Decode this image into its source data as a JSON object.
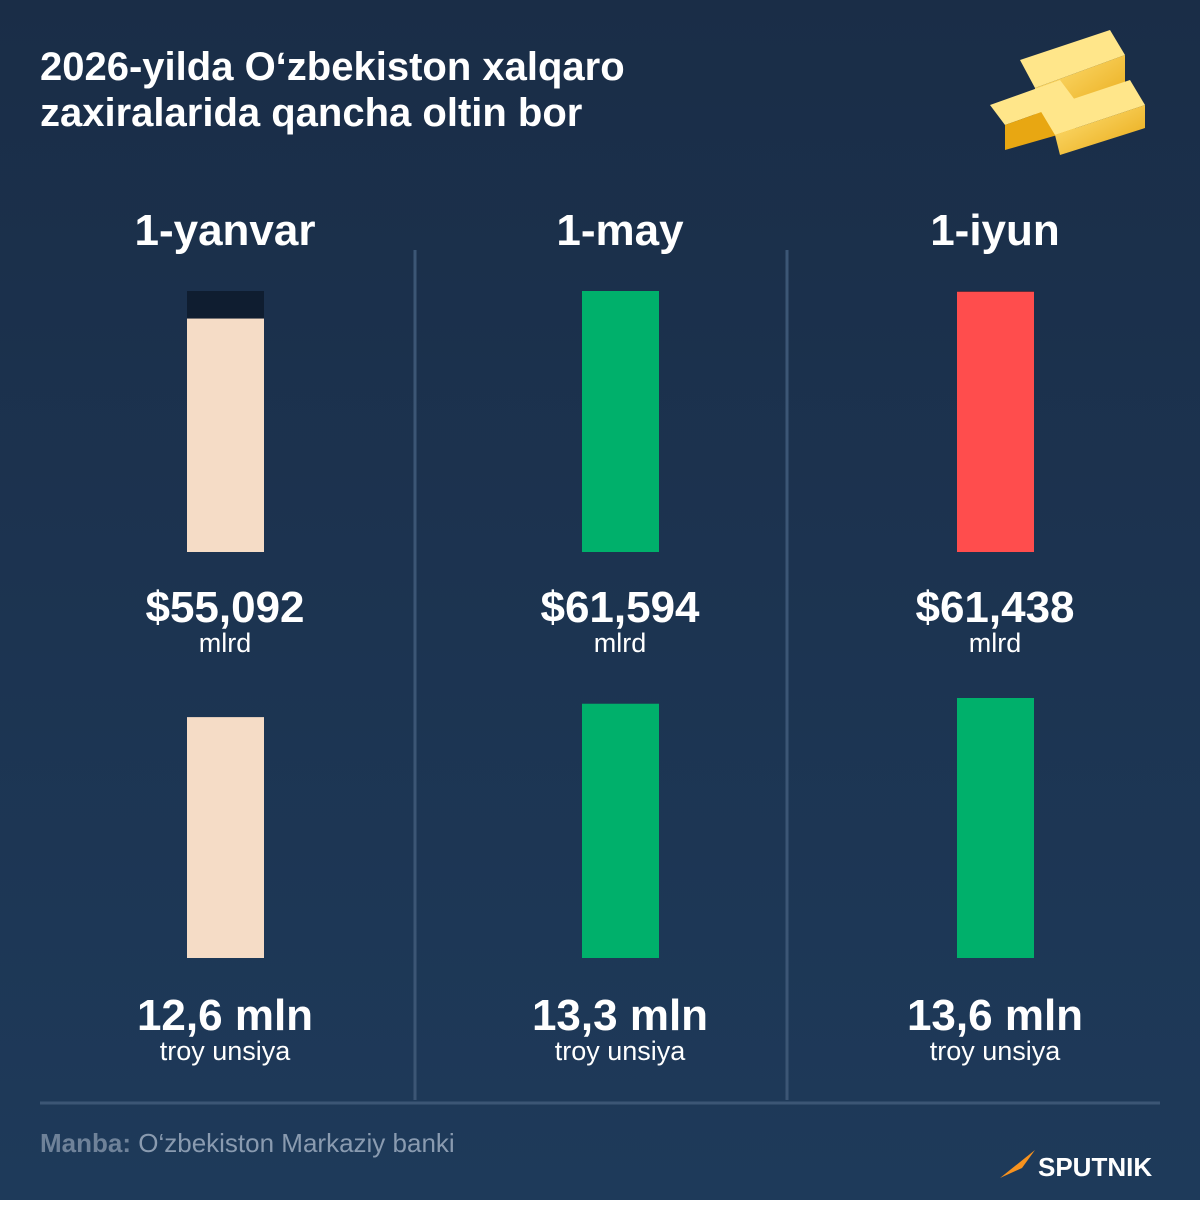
{
  "title": [
    "2026-yilda O‘zbekiston xalqaro",
    "zaxiralarida qancha oltin bor"
  ],
  "chart_data": [
    {
      "type": "bar",
      "categories": [
        "1-yanvar",
        "1-may",
        "1-iyun"
      ],
      "values": [
        55.092,
        61.594,
        61.438
      ],
      "value_labels": [
        "$55,092",
        "$61,594",
        "$61,438"
      ],
      "unit": "mlrd",
      "colors": [
        "#f5dcc6",
        "#00b06b",
        "#ff4d4d"
      ]
    },
    {
      "type": "bar",
      "values": [
        12.6,
        13.3,
        13.6
      ],
      "value_labels": [
        "12,6 mln",
        "13,3 mln",
        "13,6 mln"
      ],
      "unit": "troy unsiya",
      "colors": [
        "#f5dcc6",
        "#00b06b",
        "#00b06b"
      ]
    }
  ],
  "source": {
    "label": "Manba:",
    "text": "O‘zbekiston Markaziy banki"
  },
  "brand": "SPUTNIK"
}
